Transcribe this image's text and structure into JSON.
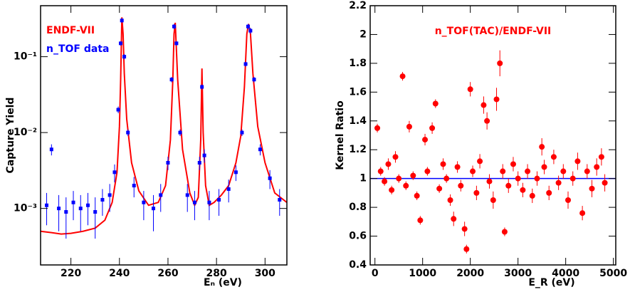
{
  "chart_data": [
    {
      "type": "line",
      "x_label": "Eₙ (eV)",
      "y_label": "Capture Yield",
      "y_scale": "log",
      "xlim": [
        207.5,
        309
      ],
      "ylim": [
        0.00018,
        0.47
      ],
      "xticks": [
        220,
        240,
        260,
        280,
        300
      ],
      "yticks": [
        {
          "value": 0.001,
          "label": "10⁻³"
        },
        {
          "value": 0.01,
          "label": "10⁻²"
        },
        {
          "value": 0.1,
          "label": "10⁻¹"
        }
      ],
      "series": [
        {
          "name": "ENDF-VII",
          "color": "#ff0000",
          "style": "line",
          "x": [
            207.5,
            212,
            216,
            220,
            225,
            230,
            234,
            237,
            239,
            240,
            240.5,
            241,
            241.5,
            242,
            243,
            245,
            248,
            252,
            256,
            259,
            261,
            262,
            262.5,
            263,
            264,
            266,
            269,
            271,
            272.5,
            273.5,
            274,
            274.5,
            275.5,
            277,
            279,
            282,
            285,
            288,
            290,
            291.5,
            292.5,
            293.2,
            294,
            295,
            297,
            300,
            304,
            309
          ],
          "values": [
            0.0005,
            0.00048,
            0.00046,
            0.00047,
            0.0005,
            0.00055,
            0.0007,
            0.0012,
            0.003,
            0.012,
            0.05,
            0.33,
            0.2,
            0.06,
            0.015,
            0.004,
            0.0017,
            0.0011,
            0.0012,
            0.002,
            0.008,
            0.05,
            0.2,
            0.28,
            0.05,
            0.006,
            0.0016,
            0.0011,
            0.0014,
            0.008,
            0.07,
            0.01,
            0.002,
            0.0011,
            0.0012,
            0.0015,
            0.002,
            0.004,
            0.009,
            0.04,
            0.2,
            0.27,
            0.2,
            0.06,
            0.012,
            0.004,
            0.0016,
            0.0012
          ]
        },
        {
          "name": "n_TOF data",
          "color": "#0000ff",
          "style": "points",
          "x": [
            210,
            212,
            215,
            218,
            221,
            224,
            227,
            230,
            233,
            236,
            238,
            239.5,
            240.5,
            241,
            242,
            243.5,
            246,
            250,
            254,
            257,
            260,
            261.5,
            262.5,
            263.5,
            265,
            268,
            271,
            273,
            274,
            275,
            277,
            281,
            285,
            288,
            290.5,
            292,
            293,
            294,
            295.5,
            298,
            302,
            306
          ],
          "values": [
            0.0011,
            0.006,
            0.001,
            0.0009,
            0.0012,
            0.001,
            0.0011,
            0.0009,
            0.0013,
            0.0015,
            0.003,
            0.02,
            0.15,
            0.3,
            0.1,
            0.01,
            0.002,
            0.0012,
            0.001,
            0.0015,
            0.004,
            0.05,
            0.25,
            0.15,
            0.01,
            0.0015,
            0.0012,
            0.004,
            0.04,
            0.005,
            0.0012,
            0.0013,
            0.0018,
            0.003,
            0.01,
            0.08,
            0.25,
            0.22,
            0.05,
            0.006,
            0.0025,
            0.0013
          ],
          "errors": [
            0.0005,
            0.001,
            0.0005,
            0.0005,
            0.0005,
            0.0005,
            0.0005,
            0.0005,
            0.0005,
            0.0006,
            0.0008,
            0.002,
            0.01,
            0.02,
            0.008,
            0.001,
            0.0006,
            0.0005,
            0.0005,
            0.0006,
            0.0008,
            0.004,
            0.02,
            0.01,
            0.001,
            0.0006,
            0.0005,
            0.0008,
            0.003,
            0.001,
            0.0005,
            0.0005,
            0.0006,
            0.0007,
            0.001,
            0.006,
            0.02,
            0.02,
            0.004,
            0.001,
            0.0007,
            0.0005
          ]
        }
      ]
    },
    {
      "type": "scatter",
      "x_label": "E_R (eV)",
      "y_label": "Kernel Ratio",
      "annotation": "n_TOF(TAC)/ENDF-VII",
      "xlim": [
        -100,
        5050
      ],
      "ylim": [
        0.4,
        2.2
      ],
      "xticks": [
        0,
        1000,
        2000,
        3000,
        4000,
        5000
      ],
      "yticks": [
        0.4,
        0.6,
        0.8,
        1,
        1.2,
        1.4,
        1.6,
        1.8,
        2,
        2.2
      ],
      "reference_line": 1,
      "reference_color": "#0000ff",
      "color": "#ff0000",
      "x": [
        50,
        120,
        200,
        280,
        350,
        430,
        500,
        580,
        650,
        720,
        800,
        880,
        950,
        1050,
        1100,
        1200,
        1270,
        1350,
        1430,
        1500,
        1580,
        1650,
        1730,
        1800,
        1880,
        1920,
        2000,
        2050,
        2130,
        2200,
        2280,
        2350,
        2400,
        2480,
        2550,
        2620,
        2680,
        2720,
        2800,
        2900,
        3000,
        3100,
        3200,
        3300,
        3400,
        3500,
        3550,
        3650,
        3750,
        3850,
        3950,
        4050,
        4150,
        4250,
        4350,
        4450,
        4550,
        4650,
        4750,
        4820
      ],
      "values": [
        1.35,
        1.05,
        0.98,
        1.1,
        0.92,
        1.15,
        1.0,
        1.71,
        0.95,
        1.36,
        1.02,
        0.88,
        0.71,
        1.27,
        1.05,
        1.35,
        1.52,
        0.93,
        1.1,
        1.0,
        0.85,
        0.72,
        1.08,
        0.95,
        0.65,
        0.51,
        1.62,
        1.05,
        0.9,
        1.12,
        1.51,
        1.4,
        0.98,
        0.85,
        1.55,
        1.8,
        1.05,
        0.63,
        0.95,
        1.1,
        1.0,
        0.92,
        1.05,
        0.88,
        1.0,
        1.22,
        1.08,
        0.9,
        1.15,
        0.97,
        1.05,
        0.85,
        1.0,
        1.12,
        0.76,
        1.05,
        0.93,
        1.08,
        1.15,
        0.97
      ],
      "errors": [
        0.03,
        0.03,
        0.03,
        0.04,
        0.03,
        0.04,
        0.03,
        0.03,
        0.03,
        0.04,
        0.03,
        0.03,
        0.03,
        0.04,
        0.03,
        0.04,
        0.03,
        0.03,
        0.04,
        0.03,
        0.04,
        0.05,
        0.04,
        0.04,
        0.05,
        0.03,
        0.05,
        0.04,
        0.05,
        0.05,
        0.06,
        0.06,
        0.05,
        0.06,
        0.08,
        0.09,
        0.05,
        0.03,
        0.05,
        0.05,
        0.05,
        0.05,
        0.05,
        0.05,
        0.05,
        0.06,
        0.05,
        0.05,
        0.05,
        0.05,
        0.05,
        0.06,
        0.05,
        0.06,
        0.05,
        0.05,
        0.06,
        0.06,
        0.06,
        0.06
      ]
    }
  ]
}
